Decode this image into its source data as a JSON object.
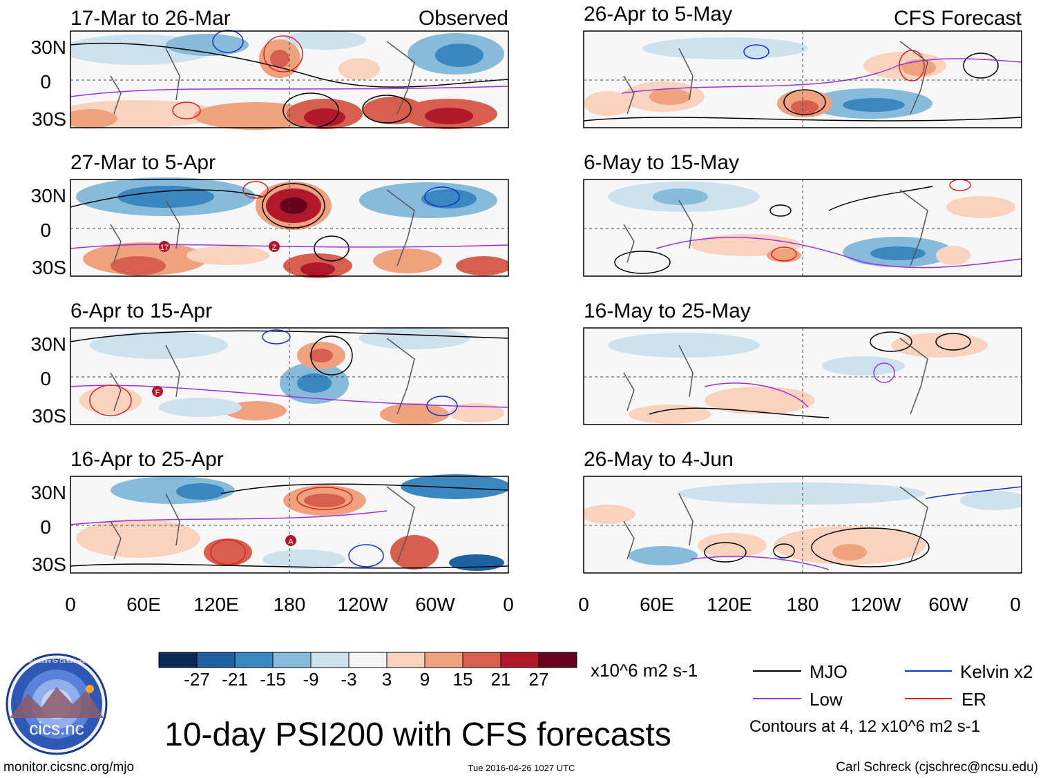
{
  "left_column_label": "Observed",
  "right_column_label": "CFS Forecast",
  "panels_left": [
    {
      "title": "17-Mar to 26-Mar"
    },
    {
      "title": "27-Mar to 5-Apr"
    },
    {
      "title": "6-Apr to 15-Apr"
    },
    {
      "title": "16-Apr to 25-Apr"
    }
  ],
  "panels_right": [
    {
      "title": "26-Apr to 5-May"
    },
    {
      "title": "6-May to 15-May"
    },
    {
      "title": "16-May to 25-May"
    },
    {
      "title": "26-May to 4-Jun"
    }
  ],
  "lat_labels": [
    "30N",
    "0",
    "30S"
  ],
  "lon_labels": [
    "0",
    "60E",
    "120E",
    "180",
    "120W",
    "60W",
    "0"
  ],
  "colorbar": {
    "colors": [
      "#0d2a57",
      "#1f62a4",
      "#3b87bf",
      "#86bbdb",
      "#cde2ef",
      "#f5f5f5",
      "#fad3bf",
      "#f0a27f",
      "#d6604d",
      "#b2182b",
      "#67001f"
    ],
    "tick_labels": [
      "-27",
      "-21",
      "-15",
      "-9",
      "-3",
      "3",
      "9",
      "15",
      "21",
      "27"
    ],
    "units": "x10^6 m2 s-1"
  },
  "legend": {
    "items": [
      {
        "label": "MJO",
        "color": "#000000"
      },
      {
        "label": "Kelvin x2",
        "color": "#1030d0"
      },
      {
        "label": "Low",
        "color": "#9b30e0"
      },
      {
        "label": "ER",
        "color": "#e02020"
      }
    ],
    "contours_note": "Contours at 4, 12 x10^6 m2 s-1"
  },
  "storm_markers": [
    "17",
    "Z",
    "F",
    "A"
  ],
  "logo_text": "cics.nc",
  "logo_ring_text": "Cooperative Institute for Climate and Satellites",
  "main_title": "10-day PSI200 with CFS forecasts",
  "footer": {
    "url": "monitor.cicsnc.org/mjo",
    "timestamp": "Tue 2016-04-26 1027 UTC",
    "author": "Carl Schreck (cjschrec@ncsu.edu)"
  }
}
